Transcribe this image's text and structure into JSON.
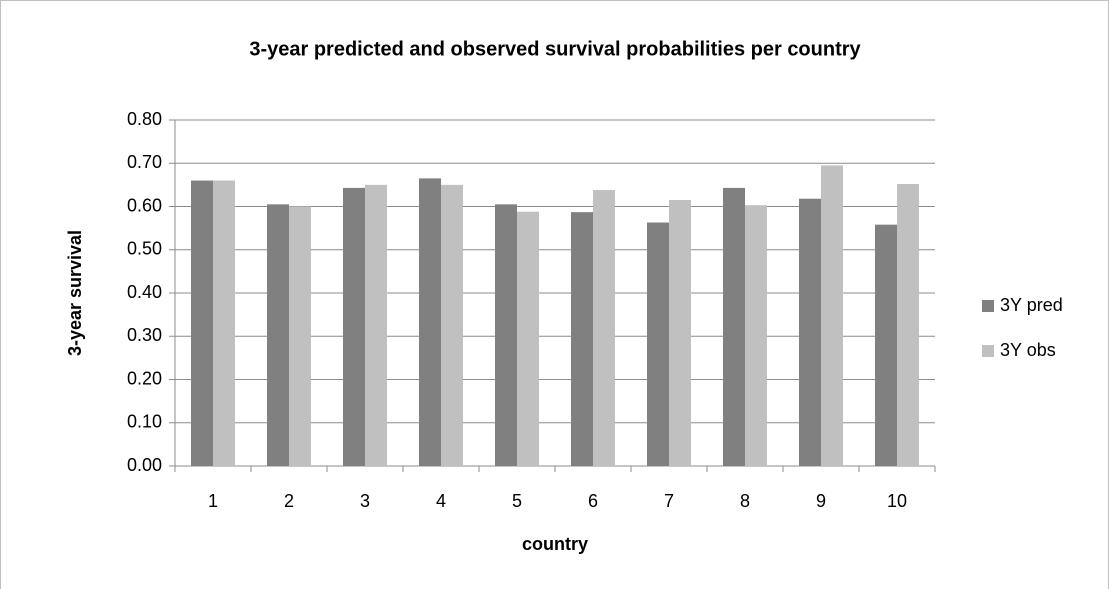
{
  "chart_data": {
    "type": "bar",
    "title": "3-year predicted  and observed survival probabilities per country",
    "x_label": "country",
    "y_label": "3-year survival",
    "categories": [
      "1",
      "2",
      "3",
      "4",
      "5",
      "6",
      "7",
      "8",
      "9",
      "10"
    ],
    "series": [
      {
        "name": "3Y pred",
        "color": "#808080",
        "values": [
          0.66,
          0.605,
          0.643,
          0.665,
          0.605,
          0.587,
          0.563,
          0.643,
          0.618,
          0.558
        ]
      },
      {
        "name": "3Y obs",
        "color": "#c0c0c0",
        "values": [
          0.66,
          0.6,
          0.65,
          0.65,
          0.588,
          0.638,
          0.615,
          0.603,
          0.695,
          0.652
        ]
      }
    ],
    "ylim": [
      0,
      0.8
    ],
    "yticks": [
      {
        "value": 0,
        "label": "0.00"
      },
      {
        "value": 0.1,
        "label": "0.10"
      },
      {
        "value": 0.2,
        "label": "0.20"
      },
      {
        "value": 0.3,
        "label": "0.30"
      },
      {
        "value": 0.4,
        "label": "0.40"
      },
      {
        "value": 0.5,
        "label": "0.50"
      },
      {
        "value": 0.6,
        "label": "0.60"
      },
      {
        "value": 0.7,
        "label": "0.70"
      },
      {
        "value": 0.8,
        "label": "0.80"
      }
    ],
    "grid": true,
    "legend": "right"
  }
}
